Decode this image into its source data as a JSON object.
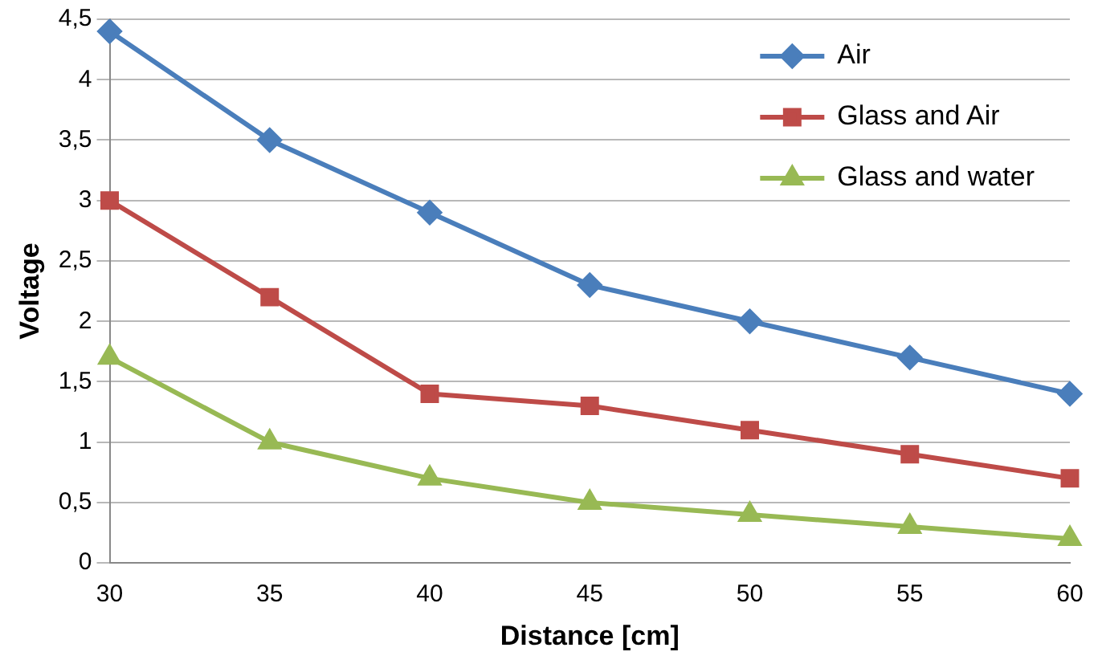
{
  "chart_data": {
    "type": "line",
    "xlabel": "Distance [cm]",
    "ylabel": "Voltage",
    "categories": [
      "30",
      "35",
      "40",
      "45",
      "50",
      "55",
      "60"
    ],
    "series": [
      {
        "name": "Air",
        "color": "#4a7ebb",
        "marker": "diamond",
        "values": [
          4.4,
          3.5,
          2.9,
          2.3,
          2.0,
          1.7,
          1.4
        ]
      },
      {
        "name": "Glass and Air",
        "color": "#be4b48",
        "marker": "square",
        "values": [
          3.0,
          2.2,
          1.4,
          1.3,
          1.1,
          0.9,
          0.7
        ]
      },
      {
        "name": "Glass and water",
        "color": "#98b954",
        "marker": "triangle",
        "values": [
          1.7,
          1.0,
          0.7,
          0.5,
          0.4,
          0.3,
          0.2
        ]
      }
    ],
    "ylim": [
      0,
      4.5
    ],
    "yticks": [
      0,
      {
        "value": 0.5,
        "label": "0,5"
      },
      1,
      {
        "value": 1.5,
        "label": "1,5"
      },
      2,
      {
        "value": 2.5,
        "label": "2,5"
      },
      3,
      {
        "value": 3.5,
        "label": "3,5"
      },
      4,
      {
        "value": 4.5,
        "label": "4,5"
      }
    ],
    "grid": "y",
    "legend": "top right",
    "line_style": "solid"
  }
}
